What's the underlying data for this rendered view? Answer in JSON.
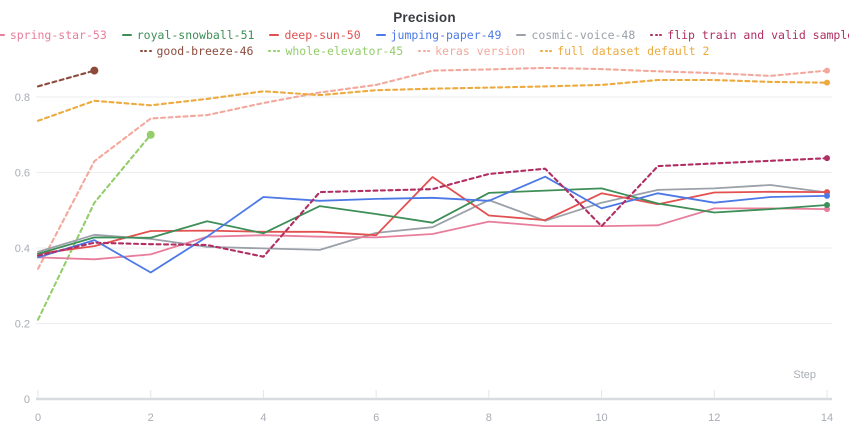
{
  "title": "Precision",
  "chart_data": {
    "type": "line",
    "title": "Precision",
    "xlabel": "Step",
    "ylabel": "",
    "x_ticks": [
      0,
      2,
      4,
      6,
      8,
      10,
      12,
      14
    ],
    "y_ticks": [
      0,
      0.2,
      0.4,
      0.6,
      0.8
    ],
    "xlim": [
      0,
      14
    ],
    "ylim": [
      0,
      0.905
    ],
    "grid": "horizontal-only",
    "legend_position": "top",
    "x": [
      0,
      1,
      2,
      3,
      4,
      5,
      6,
      7,
      8,
      9,
      10,
      11,
      12,
      13,
      14
    ],
    "series": [
      {
        "name": "spring-star-53",
        "color": "#e87d9c",
        "style": "solid",
        "legend_row": 1,
        "x": [
          0,
          1,
          2,
          3,
          4,
          5,
          6,
          7,
          8,
          9,
          10,
          11,
          12,
          13,
          14
        ],
        "values": [
          0.375,
          0.37,
          0.383,
          0.43,
          0.434,
          0.43,
          0.428,
          0.437,
          0.47,
          0.458,
          0.458,
          0.46,
          0.505,
          0.505,
          0.503
        ]
      },
      {
        "name": "royal-snowball-51",
        "color": "#3e8e58",
        "style": "solid",
        "legend_row": 1,
        "x": [
          0,
          1,
          2,
          3,
          4,
          5,
          6,
          7,
          8,
          9,
          10,
          11,
          12,
          13,
          14
        ],
        "values": [
          0.385,
          0.428,
          0.427,
          0.471,
          0.439,
          0.511,
          0.49,
          0.467,
          0.546,
          0.552,
          0.558,
          0.518,
          0.494,
          0.503,
          0.514
        ]
      },
      {
        "name": "deep-sun-50",
        "color": "#e25050",
        "style": "solid",
        "legend_row": 1,
        "x": [
          0,
          1,
          2,
          3,
          4,
          5,
          6,
          7,
          8,
          9,
          10,
          11,
          12,
          13,
          14
        ],
        "values": [
          0.385,
          0.405,
          0.445,
          0.446,
          0.443,
          0.443,
          0.434,
          0.588,
          0.486,
          0.474,
          0.545,
          0.516,
          0.547,
          0.549,
          0.548
        ]
      },
      {
        "name": "jumping-paper-49",
        "color": "#4c79e6",
        "style": "solid",
        "legend_row": 1,
        "x": [
          0,
          1,
          2,
          3,
          4,
          5,
          6,
          7,
          8,
          9,
          10,
          11,
          12,
          13,
          14
        ],
        "values": [
          0.375,
          0.421,
          0.335,
          0.43,
          0.535,
          0.525,
          0.53,
          0.533,
          0.525,
          0.589,
          0.505,
          0.545,
          0.52,
          0.535,
          0.538
        ]
      },
      {
        "name": "cosmic-voice-48",
        "color": "#9ba1a9",
        "style": "solid",
        "legend_row": 1,
        "x": [
          0,
          1,
          2,
          3,
          4,
          5,
          6,
          7,
          8,
          9,
          10,
          11,
          12,
          13,
          14
        ],
        "values": [
          0.39,
          0.435,
          0.424,
          0.403,
          0.399,
          0.395,
          0.44,
          0.455,
          0.527,
          0.472,
          0.52,
          0.554,
          0.558,
          0.567,
          0.547
        ]
      },
      {
        "name": "flip train and valid sample",
        "color": "#b02e62",
        "style": "dashed",
        "legend_row": 1,
        "x": [
          0,
          1,
          2,
          3,
          4,
          5,
          6,
          7,
          8,
          9,
          10,
          11,
          12,
          13,
          14
        ],
        "values": [
          0.38,
          0.414,
          0.41,
          0.408,
          0.377,
          0.548,
          0.552,
          0.556,
          0.596,
          0.61,
          0.458,
          0.617,
          0.624,
          0.631,
          0.638
        ]
      },
      {
        "name": "good-breeze-46",
        "color": "#8d4a3b",
        "style": "dashed",
        "legend_row": 2,
        "x": [
          0,
          1
        ],
        "values": [
          0.828,
          0.87
        ]
      },
      {
        "name": "whole-elevator-45",
        "color": "#93cd6c",
        "style": "dashed",
        "legend_row": 2,
        "x": [
          0,
          1,
          2
        ],
        "values": [
          0.21,
          0.52,
          0.7
        ]
      },
      {
        "name": "keras version",
        "color": "#f3a89d",
        "style": "dashed",
        "legend_row": 2,
        "x": [
          0,
          1,
          2,
          3,
          4,
          5,
          6,
          7,
          8,
          9,
          10,
          11,
          12,
          13,
          14
        ],
        "values": [
          0.345,
          0.63,
          0.743,
          0.752,
          0.784,
          0.812,
          0.832,
          0.87,
          0.873,
          0.877,
          0.874,
          0.868,
          0.863,
          0.856,
          0.87
        ]
      },
      {
        "name": "full dataset default 2",
        "color": "#ecaa3f",
        "style": "dashed",
        "legend_row": 2,
        "x": [
          0,
          1,
          2,
          3,
          4,
          5,
          6,
          7,
          8,
          9,
          10,
          11,
          12,
          13,
          14
        ],
        "values": [
          0.737,
          0.79,
          0.778,
          0.795,
          0.815,
          0.805,
          0.818,
          0.822,
          0.825,
          0.828,
          0.832,
          0.845,
          0.845,
          0.84,
          0.838
        ]
      }
    ],
    "colors": {
      "gridline": "#ebedef",
      "axis_line": "#d8dbdf",
      "tick_mark": "#e2e4e8",
      "tick_label": "#a9adb4",
      "title": "#3a3d42"
    }
  }
}
